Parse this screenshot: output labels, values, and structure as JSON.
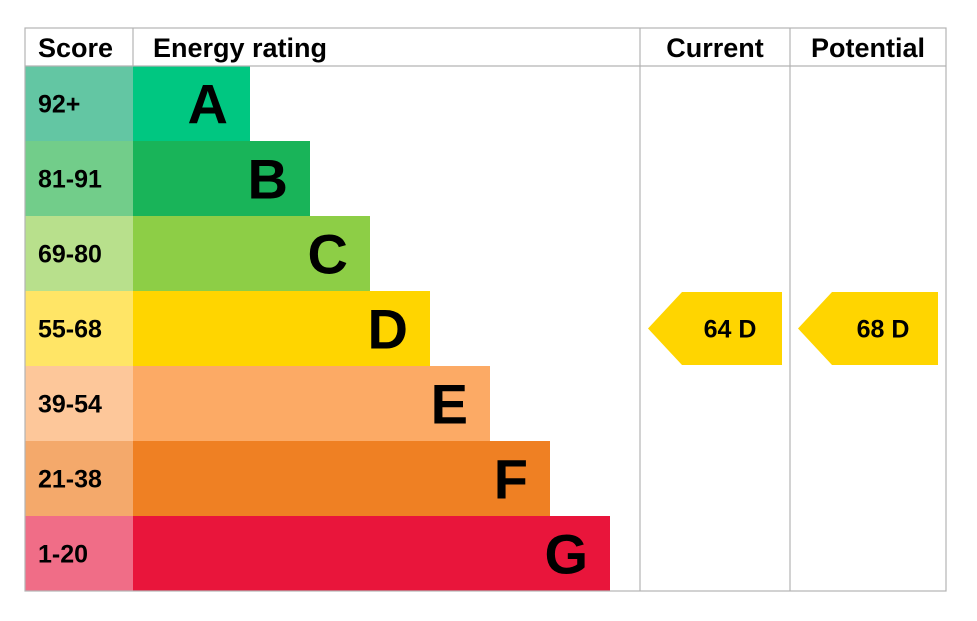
{
  "headers": {
    "score": "Score",
    "energy_rating": "Energy rating",
    "current": "Current",
    "potential": "Potential"
  },
  "chart_data": {
    "type": "bar",
    "title": "",
    "categories": [
      "A",
      "B",
      "C",
      "D",
      "E",
      "F",
      "G"
    ],
    "bands": [
      {
        "letter": "A",
        "range": "92+",
        "color": "#00c781",
        "score_bg": "#63c6a3"
      },
      {
        "letter": "B",
        "range": "81-91",
        "color": "#19b459",
        "score_bg": "#72cd8a"
      },
      {
        "letter": "C",
        "range": "69-80",
        "color": "#8dce46",
        "score_bg": "#b8e08c"
      },
      {
        "letter": "D",
        "range": "55-68",
        "color": "#ffd500",
        "score_bg": "#ffe566"
      },
      {
        "letter": "E",
        "range": "39-54",
        "color": "#fcaa65",
        "score_bg": "#fdc79a"
      },
      {
        "letter": "F",
        "range": "21-38",
        "color": "#ef8023",
        "score_bg": "#f4a96b"
      },
      {
        "letter": "G",
        "range": "1-20",
        "color": "#e9153b",
        "score_bg": "#f06d87"
      }
    ],
    "current": {
      "value": 64,
      "band": "D",
      "label": "64  D",
      "color": "#ffd500"
    },
    "potential": {
      "value": 68,
      "band": "D",
      "label": "68  D",
      "color": "#ffd500"
    }
  }
}
